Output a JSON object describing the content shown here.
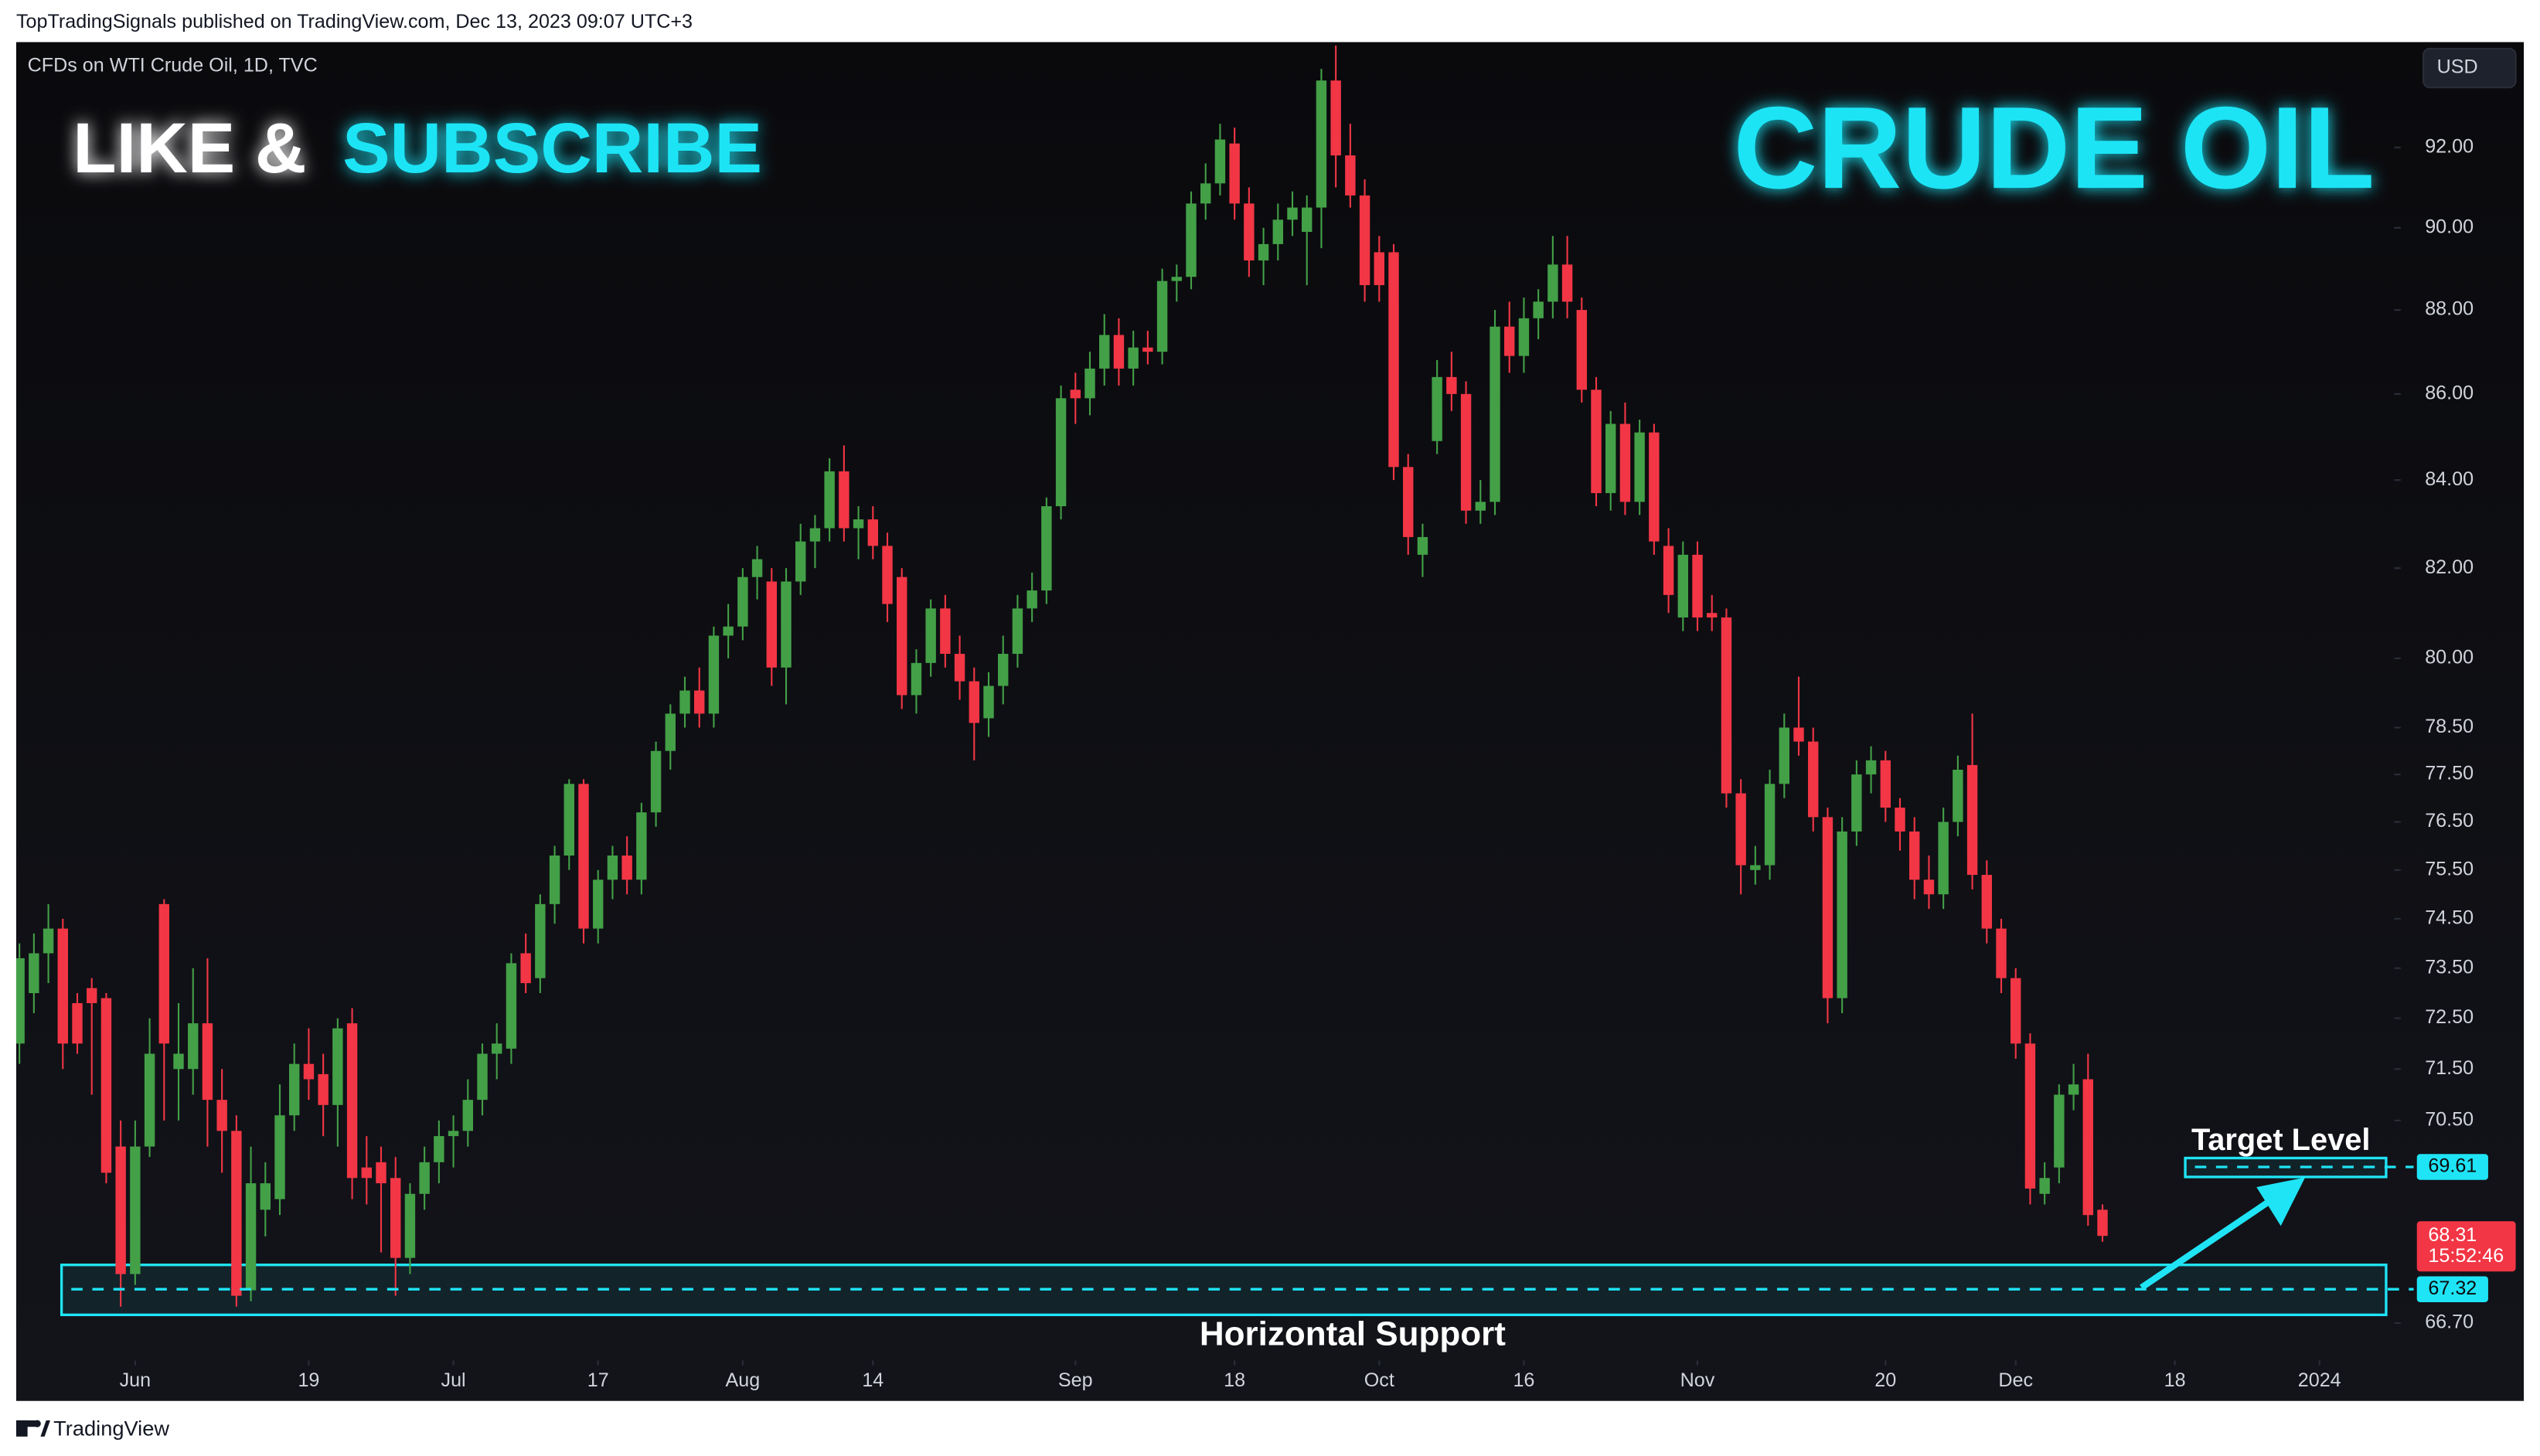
{
  "header": "TopTradingSignals published on TradingView.com, Dec 13, 2023 09:07 UTC+3",
  "footer": "TradingView",
  "chart_data": {
    "type": "candlestick",
    "symbol": "CFDs on WTI Crude Oil, 1D, TVC",
    "currency": "USD",
    "title": "CRUDE OIL",
    "promo": [
      "LIKE &",
      "SUBSCRIBE"
    ],
    "annotations": {
      "target": "Target Level",
      "support": "Horizontal Support"
    },
    "up_color": "#43a047",
    "down_color": "#f23645",
    "level_color": "#1fe4f5",
    "log_scale": true,
    "grid": false,
    "ylim": [
      66.08,
      94.69
    ],
    "yticks": [
      {
        "value": 92,
        "label": "92.00"
      },
      {
        "value": 90,
        "label": "90.00"
      },
      {
        "value": 88,
        "label": "88.00"
      },
      {
        "value": 86,
        "label": "86.00"
      },
      {
        "value": 84,
        "label": "84.00"
      },
      {
        "value": 82,
        "label": "82.00"
      },
      {
        "value": 80,
        "label": "80.00"
      },
      {
        "value": 78.5,
        "label": "78.50"
      },
      {
        "value": 77.5,
        "label": "77.50"
      },
      {
        "value": 76.5,
        "label": "76.50"
      },
      {
        "value": 75.5,
        "label": "75.50"
      },
      {
        "value": 74.5,
        "label": "74.50"
      },
      {
        "value": 73.5,
        "label": "73.50"
      },
      {
        "value": 72.5,
        "label": "72.50"
      },
      {
        "value": 71.5,
        "label": "71.50"
      },
      {
        "value": 70.5,
        "label": "70.50"
      },
      {
        "value": 66.7,
        "label": "66.70"
      }
    ],
    "xticks": [
      {
        "value": 8,
        "label": "Jun"
      },
      {
        "value": 20,
        "label": "19"
      },
      {
        "value": 30,
        "label": "Jul"
      },
      {
        "value": 40,
        "label": "17"
      },
      {
        "value": 50,
        "label": "Aug"
      },
      {
        "value": 59,
        "label": "14"
      },
      {
        "value": 73,
        "label": "Sep"
      },
      {
        "value": 84,
        "label": "18"
      },
      {
        "value": 94,
        "label": "Oct"
      },
      {
        "value": 104,
        "label": "16"
      },
      {
        "value": 116,
        "label": "Nov"
      },
      {
        "value": 129,
        "label": "20"
      },
      {
        "value": 138,
        "label": "Dec"
      },
      {
        "value": 149,
        "label": "18"
      },
      {
        "value": 159,
        "label": "2024"
      }
    ],
    "target_level": 69.61,
    "target_zone": [
      69.42,
      69.78
    ],
    "support_level": 67.32,
    "support_zone": [
      66.85,
      67.77
    ],
    "countdown": "15:52:46",
    "candles": [
      [
        72.0,
        74.0,
        71.6,
        73.7
      ],
      [
        73.0,
        74.2,
        72.6,
        73.8
      ],
      [
        73.8,
        74.8,
        73.2,
        74.3
      ],
      [
        74.3,
        74.5,
        71.5,
        72.0
      ],
      [
        72.8,
        73.0,
        71.8,
        72.0
      ],
      [
        73.1,
        73.3,
        71.0,
        72.8
      ],
      [
        72.9,
        73.0,
        69.3,
        69.5
      ],
      [
        70.0,
        70.5,
        67.0,
        67.6
      ],
      [
        67.6,
        70.5,
        67.4,
        70.0
      ],
      [
        70.0,
        72.5,
        69.8,
        71.8
      ],
      [
        74.8,
        74.9,
        70.5,
        72.0
      ],
      [
        71.5,
        72.8,
        70.5,
        71.8
      ],
      [
        71.5,
        73.5,
        71.0,
        72.4
      ],
      [
        72.4,
        73.7,
        70.0,
        70.9
      ],
      [
        70.9,
        71.5,
        69.5,
        70.3
      ],
      [
        70.3,
        70.6,
        67.0,
        67.2
      ],
      [
        67.3,
        70.0,
        67.1,
        69.3
      ],
      [
        68.8,
        69.7,
        68.3,
        69.3
      ],
      [
        69.0,
        71.2,
        68.7,
        70.6
      ],
      [
        70.6,
        72.0,
        70.3,
        71.6
      ],
      [
        71.6,
        72.3,
        70.9,
        71.3
      ],
      [
        71.4,
        71.8,
        70.2,
        70.8
      ],
      [
        70.8,
        72.5,
        70.0,
        72.3
      ],
      [
        72.4,
        72.7,
        69.0,
        69.4
      ],
      [
        69.6,
        70.2,
        68.9,
        69.4
      ],
      [
        69.7,
        70.0,
        68.0,
        69.3
      ],
      [
        69.4,
        69.8,
        67.2,
        67.9
      ],
      [
        67.9,
        69.3,
        67.6,
        69.1
      ],
      [
        69.1,
        70.0,
        68.8,
        69.7
      ],
      [
        69.7,
        70.5,
        69.3,
        70.2
      ],
      [
        70.2,
        70.6,
        69.6,
        70.3
      ],
      [
        70.3,
        71.3,
        70.0,
        70.9
      ],
      [
        70.9,
        72.0,
        70.6,
        71.8
      ],
      [
        71.8,
        72.4,
        71.3,
        72.0
      ],
      [
        71.9,
        73.8,
        71.6,
        73.6
      ],
      [
        73.8,
        74.2,
        73.0,
        73.2
      ],
      [
        73.3,
        75.0,
        73.0,
        74.8
      ],
      [
        74.8,
        76.0,
        74.4,
        75.8
      ],
      [
        75.8,
        77.4,
        75.5,
        77.3
      ],
      [
        77.3,
        77.4,
        74.0,
        74.3
      ],
      [
        74.3,
        75.5,
        74.0,
        75.3
      ],
      [
        75.3,
        76.0,
        74.9,
        75.8
      ],
      [
        75.8,
        76.2,
        75.0,
        75.3
      ],
      [
        75.3,
        76.9,
        75.0,
        76.7
      ],
      [
        76.7,
        78.2,
        76.4,
        78.0
      ],
      [
        78.0,
        79.0,
        77.6,
        78.8
      ],
      [
        78.8,
        79.6,
        78.5,
        79.3
      ],
      [
        79.3,
        79.8,
        78.5,
        78.8
      ],
      [
        78.8,
        80.7,
        78.5,
        80.5
      ],
      [
        80.5,
        81.2,
        80.0,
        80.7
      ],
      [
        80.7,
        82.0,
        80.4,
        81.8
      ],
      [
        81.8,
        82.5,
        81.3,
        82.2
      ],
      [
        81.7,
        82.0,
        79.4,
        79.8
      ],
      [
        79.8,
        82.0,
        79.0,
        81.7
      ],
      [
        81.7,
        83.0,
        81.4,
        82.6
      ],
      [
        82.6,
        83.2,
        82.0,
        82.9
      ],
      [
        82.9,
        84.5,
        82.6,
        84.2
      ],
      [
        84.2,
        84.8,
        82.6,
        82.9
      ],
      [
        82.9,
        83.4,
        82.2,
        83.1
      ],
      [
        83.1,
        83.4,
        82.2,
        82.5
      ],
      [
        82.5,
        82.8,
        80.8,
        81.2
      ],
      [
        81.8,
        82.0,
        78.9,
        79.2
      ],
      [
        79.2,
        80.2,
        78.8,
        79.9
      ],
      [
        79.9,
        81.3,
        79.6,
        81.1
      ],
      [
        81.1,
        81.4,
        79.8,
        80.1
      ],
      [
        80.1,
        80.5,
        79.1,
        79.5
      ],
      [
        79.5,
        79.8,
        77.8,
        78.6
      ],
      [
        78.7,
        79.7,
        78.3,
        79.4
      ],
      [
        79.4,
        80.5,
        79.0,
        80.1
      ],
      [
        80.1,
        81.4,
        79.8,
        81.1
      ],
      [
        81.1,
        81.9,
        80.8,
        81.5
      ],
      [
        81.5,
        83.6,
        81.2,
        83.4
      ],
      [
        83.4,
        86.2,
        83.1,
        85.9
      ],
      [
        86.1,
        86.5,
        85.3,
        85.9
      ],
      [
        85.9,
        87.0,
        85.5,
        86.6
      ],
      [
        86.6,
        87.9,
        86.2,
        87.4
      ],
      [
        87.4,
        87.8,
        86.2,
        86.6
      ],
      [
        86.6,
        87.5,
        86.2,
        87.1
      ],
      [
        87.1,
        87.5,
        86.7,
        87.0
      ],
      [
        87.0,
        89.0,
        86.7,
        88.7
      ],
      [
        88.7,
        89.1,
        88.2,
        88.8
      ],
      [
        88.8,
        90.9,
        88.5,
        90.6
      ],
      [
        90.6,
        91.6,
        90.2,
        91.1
      ],
      [
        91.1,
        92.6,
        90.8,
        92.2
      ],
      [
        92.1,
        92.5,
        90.2,
        90.6
      ],
      [
        90.6,
        91.0,
        88.8,
        89.2
      ],
      [
        89.2,
        90.0,
        88.6,
        89.6
      ],
      [
        89.6,
        90.6,
        89.2,
        90.2
      ],
      [
        90.2,
        90.9,
        89.8,
        90.5
      ],
      [
        89.9,
        90.8,
        88.6,
        90.5
      ],
      [
        90.5,
        94.0,
        89.5,
        93.7
      ],
      [
        93.7,
        94.6,
        91.0,
        91.8
      ],
      [
        91.8,
        92.6,
        90.5,
        90.8
      ],
      [
        90.8,
        91.2,
        88.2,
        88.6
      ],
      [
        89.4,
        89.8,
        88.2,
        88.6
      ],
      [
        89.4,
        89.6,
        84.0,
        84.3
      ],
      [
        84.3,
        84.6,
        82.3,
        82.7
      ],
      [
        82.3,
        83.0,
        81.8,
        82.7
      ],
      [
        84.9,
        86.8,
        84.6,
        86.4
      ],
      [
        86.4,
        87.0,
        85.6,
        86.0
      ],
      [
        86.0,
        86.3,
        83.0,
        83.3
      ],
      [
        83.3,
        84.0,
        83.0,
        83.5
      ],
      [
        83.5,
        88.0,
        83.2,
        87.6
      ],
      [
        87.6,
        88.2,
        86.5,
        86.9
      ],
      [
        86.9,
        88.3,
        86.5,
        87.8
      ],
      [
        87.8,
        88.5,
        87.3,
        88.2
      ],
      [
        88.2,
        89.8,
        87.8,
        89.1
      ],
      [
        89.1,
        89.8,
        87.8,
        88.2
      ],
      [
        88.0,
        88.3,
        85.8,
        86.1
      ],
      [
        86.1,
        86.4,
        83.4,
        83.7
      ],
      [
        83.7,
        85.6,
        83.3,
        85.3
      ],
      [
        85.3,
        85.8,
        83.2,
        83.5
      ],
      [
        83.5,
        85.4,
        83.2,
        85.1
      ],
      [
        85.1,
        85.3,
        82.3,
        82.6
      ],
      [
        82.5,
        82.9,
        81.0,
        81.4
      ],
      [
        80.9,
        82.6,
        80.6,
        82.3
      ],
      [
        82.3,
        82.6,
        80.6,
        80.9
      ],
      [
        81.0,
        81.4,
        80.6,
        80.9
      ],
      [
        80.9,
        81.1,
        76.8,
        77.1
      ],
      [
        77.1,
        77.4,
        75.0,
        75.6
      ],
      [
        75.5,
        76.0,
        75.2,
        75.6
      ],
      [
        75.6,
        77.6,
        75.3,
        77.3
      ],
      [
        77.3,
        78.8,
        77.0,
        78.5
      ],
      [
        78.5,
        79.6,
        77.9,
        78.2
      ],
      [
        78.2,
        78.5,
        76.3,
        76.6
      ],
      [
        76.6,
        76.8,
        72.4,
        72.9
      ],
      [
        72.9,
        76.6,
        72.6,
        76.3
      ],
      [
        76.3,
        77.8,
        76.0,
        77.5
      ],
      [
        77.5,
        78.1,
        77.1,
        77.8
      ],
      [
        77.8,
        78.0,
        76.5,
        76.8
      ],
      [
        76.8,
        77.0,
        75.9,
        76.3
      ],
      [
        76.3,
        76.6,
        74.9,
        75.3
      ],
      [
        75.3,
        75.8,
        74.7,
        75.0
      ],
      [
        75.0,
        76.8,
        74.7,
        76.5
      ],
      [
        76.5,
        77.9,
        76.2,
        77.6
      ],
      [
        77.7,
        78.8,
        75.1,
        75.4
      ],
      [
        75.4,
        75.7,
        74.0,
        74.3
      ],
      [
        74.3,
        74.5,
        73.0,
        73.3
      ],
      [
        73.3,
        73.5,
        71.7,
        72.0
      ],
      [
        72.0,
        72.2,
        68.9,
        69.2
      ],
      [
        69.1,
        69.7,
        68.9,
        69.4
      ],
      [
        69.6,
        71.2,
        69.3,
        71.0
      ],
      [
        71.0,
        71.6,
        70.7,
        71.2
      ],
      [
        71.3,
        71.8,
        68.5,
        68.7
      ],
      [
        68.8,
        68.9,
        68.2,
        68.31
      ]
    ]
  }
}
